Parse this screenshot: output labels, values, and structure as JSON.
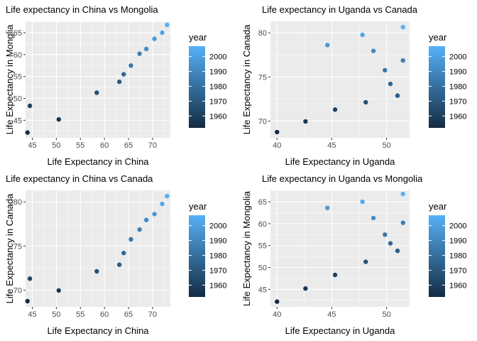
{
  "colorbar": {
    "title": "year",
    "ticks": [
      1960,
      1970,
      1980,
      1990,
      2000
    ],
    "range": [
      1952,
      2007
    ],
    "low_color": "#132B43",
    "high_color": "#56B1F7"
  },
  "style": {
    "panel_bg": "#EBEBEB",
    "grid_color": "#FFFFFF",
    "point_color_scale": "year"
  },
  "chart_data": [
    {
      "type": "scatter",
      "title": "Life expectancy in China vs Mongolia",
      "xlabel": "Life Expectancy in China",
      "ylabel": "Life Expectancy in Monglia",
      "xlim": [
        43.6,
        73.7
      ],
      "ylim": [
        41.0,
        67.6
      ],
      "xticks": [
        45,
        50,
        55,
        60,
        65,
        70
      ],
      "yticks": [
        45,
        50,
        55,
        60,
        65
      ],
      "points": [
        {
          "x": 44.0,
          "y": 42.2,
          "year": 1952
        },
        {
          "x": 50.5,
          "y": 45.2,
          "year": 1957
        },
        {
          "x": 44.5,
          "y": 48.3,
          "year": 1962
        },
        {
          "x": 58.4,
          "y": 51.3,
          "year": 1967
        },
        {
          "x": 63.1,
          "y": 53.8,
          "year": 1972
        },
        {
          "x": 64.0,
          "y": 55.5,
          "year": 1977
        },
        {
          "x": 65.5,
          "y": 57.5,
          "year": 1982
        },
        {
          "x": 67.3,
          "y": 60.2,
          "year": 1987
        },
        {
          "x": 68.7,
          "y": 61.3,
          "year": 1992
        },
        {
          "x": 70.4,
          "y": 63.6,
          "year": 1997
        },
        {
          "x": 72.0,
          "y": 65.0,
          "year": 2002
        },
        {
          "x": 73.0,
          "y": 66.8,
          "year": 2007
        }
      ]
    },
    {
      "type": "scatter",
      "title": "Life expectancy in Uganda vs Canada",
      "xlabel": "Life Expectancy in Uganda",
      "ylabel": "Life Expectancy in Canada",
      "xlim": [
        39.4,
        52.1
      ],
      "ylim": [
        68.1,
        81.3
      ],
      "xticks": [
        40,
        45,
        50
      ],
      "yticks": [
        70,
        75,
        80
      ],
      "points": [
        {
          "x": 40.0,
          "y": 68.75,
          "year": 1952
        },
        {
          "x": 42.6,
          "y": 69.96,
          "year": 1957
        },
        {
          "x": 45.3,
          "y": 71.3,
          "year": 1962
        },
        {
          "x": 48.1,
          "y": 72.13,
          "year": 1967
        },
        {
          "x": 51.0,
          "y": 72.88,
          "year": 1972
        },
        {
          "x": 50.35,
          "y": 74.21,
          "year": 1977
        },
        {
          "x": 49.85,
          "y": 75.76,
          "year": 1982
        },
        {
          "x": 51.5,
          "y": 76.86,
          "year": 1987
        },
        {
          "x": 48.8,
          "y": 77.95,
          "year": 1992
        },
        {
          "x": 44.6,
          "y": 78.61,
          "year": 1997
        },
        {
          "x": 47.8,
          "y": 79.77,
          "year": 2002
        },
        {
          "x": 51.5,
          "y": 80.65,
          "year": 2007
        }
      ]
    },
    {
      "type": "scatter",
      "title": "Life expectancy in China vs Canada",
      "xlabel": "Life Expectancy in China",
      "ylabel": "Life Expectancy in Canada",
      "xlim": [
        43.6,
        73.7
      ],
      "ylim": [
        68.1,
        81.3
      ],
      "xticks": [
        45,
        50,
        55,
        60,
        65,
        70
      ],
      "yticks": [
        70,
        75,
        80
      ],
      "points": [
        {
          "x": 44.0,
          "y": 68.75,
          "year": 1952
        },
        {
          "x": 50.5,
          "y": 69.96,
          "year": 1957
        },
        {
          "x": 44.5,
          "y": 71.3,
          "year": 1962
        },
        {
          "x": 58.4,
          "y": 72.13,
          "year": 1967
        },
        {
          "x": 63.1,
          "y": 72.88,
          "year": 1972
        },
        {
          "x": 64.0,
          "y": 74.21,
          "year": 1977
        },
        {
          "x": 65.5,
          "y": 75.76,
          "year": 1982
        },
        {
          "x": 67.3,
          "y": 76.86,
          "year": 1987
        },
        {
          "x": 68.7,
          "y": 77.95,
          "year": 1992
        },
        {
          "x": 70.4,
          "y": 78.61,
          "year": 1997
        },
        {
          "x": 72.0,
          "y": 79.77,
          "year": 2002
        },
        {
          "x": 73.0,
          "y": 80.65,
          "year": 2007
        }
      ]
    },
    {
      "type": "scatter",
      "title": "Life expectancy in Uganda vs Mongolia",
      "xlabel": "Life Expectancy in Uganda",
      "ylabel": "Life Expectancy in Mongolia",
      "xlim": [
        39.4,
        52.1
      ],
      "ylim": [
        41.0,
        67.6
      ],
      "xticks": [
        40,
        45,
        50
      ],
      "yticks": [
        45,
        50,
        55,
        60,
        65
      ],
      "points": [
        {
          "x": 40.0,
          "y": 42.2,
          "year": 1952
        },
        {
          "x": 42.6,
          "y": 45.2,
          "year": 1957
        },
        {
          "x": 45.3,
          "y": 48.3,
          "year": 1962
        },
        {
          "x": 48.1,
          "y": 51.3,
          "year": 1967
        },
        {
          "x": 51.0,
          "y": 53.8,
          "year": 1972
        },
        {
          "x": 50.35,
          "y": 55.5,
          "year": 1977
        },
        {
          "x": 49.85,
          "y": 57.5,
          "year": 1982
        },
        {
          "x": 51.5,
          "y": 60.2,
          "year": 1987
        },
        {
          "x": 48.8,
          "y": 61.3,
          "year": 1992
        },
        {
          "x": 44.6,
          "y": 63.6,
          "year": 1997
        },
        {
          "x": 47.8,
          "y": 65.0,
          "year": 2002
        },
        {
          "x": 51.5,
          "y": 66.8,
          "year": 2007
        }
      ]
    }
  ]
}
